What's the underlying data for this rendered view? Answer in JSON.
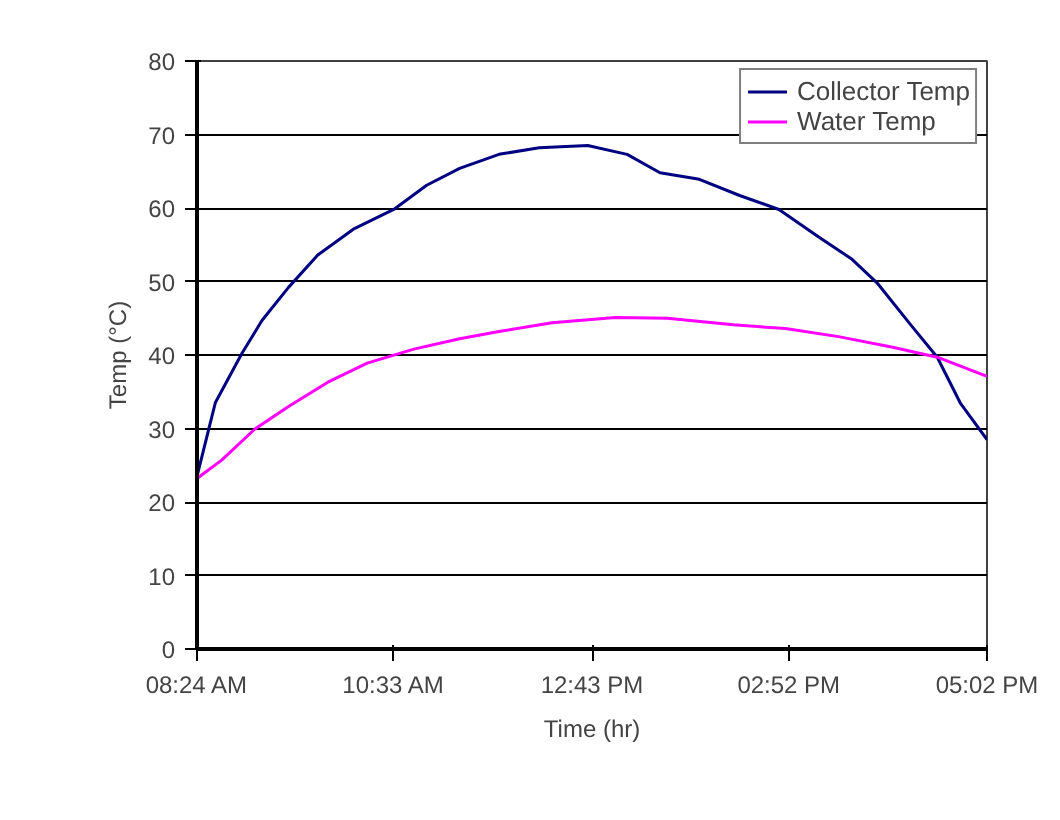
{
  "chart_data": {
    "type": "line",
    "xlabel": "Time (hr)",
    "ylabel": "Temp (°C)",
    "xlim": [
      8.4,
      17.0333
    ],
    "xticks": [
      {
        "value": 8.4,
        "label": "08:24 AM"
      },
      {
        "value": 10.55,
        "label": "10:33 AM"
      },
      {
        "value": 12.7167,
        "label": "12:43 PM"
      },
      {
        "value": 14.8667,
        "label": "02:52 PM"
      },
      {
        "value": 17.0333,
        "label": "05:02 PM"
      }
    ],
    "ylim": [
      0,
      80
    ],
    "yticks": [
      0,
      10,
      20,
      30,
      40,
      50,
      60,
      70,
      80
    ],
    "grid": "y",
    "legend": "top right",
    "marker": "none",
    "line_style": "solid",
    "series": [
      {
        "name": "Collector Temp",
        "color": "#000080",
        "x": [
          8.4,
          8.6,
          8.89,
          9.11,
          9.4,
          9.72,
          10.12,
          10.55,
          10.91,
          11.27,
          11.7,
          12.14,
          12.67,
          13.1,
          13.46,
          13.89,
          14.33,
          14.76,
          15.19,
          15.55,
          15.84,
          16.2,
          16.49,
          16.74,
          17.0333
        ],
        "values": [
          23.5,
          33.5,
          40.2,
          44.7,
          49.2,
          53.6,
          57.2,
          59.8,
          63.1,
          65.4,
          67.3,
          68.2,
          68.5,
          67.3,
          64.8,
          63.9,
          61.7,
          59.8,
          56.1,
          53.1,
          49.7,
          44.1,
          39.7,
          33.5,
          28.5
        ]
      },
      {
        "name": "Water Temp",
        "color": "#ff00ff",
        "x": [
          8.4,
          8.67,
          9.03,
          9.4,
          9.83,
          10.26,
          10.77,
          11.27,
          11.7,
          12.28,
          12.97,
          13.54,
          14.26,
          14.83,
          15.41,
          15.99,
          16.49,
          17.0333
        ],
        "values": [
          23.2,
          25.7,
          29.9,
          33,
          36.3,
          38.9,
          40.8,
          42.2,
          43.2,
          44.4,
          45.1,
          45,
          44.1,
          43.6,
          42.5,
          41.1,
          39.7,
          37.1
        ]
      }
    ]
  }
}
